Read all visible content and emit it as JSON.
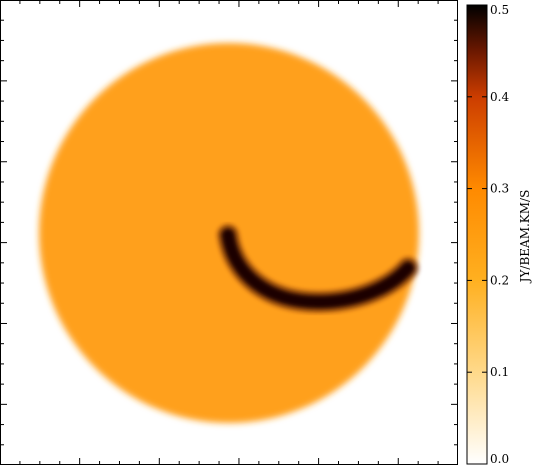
{
  "chart_data": {
    "type": "heatmap",
    "title": "",
    "colorbar": {
      "label": "JY/BEAM.KM/S",
      "range": [
        0.0,
        0.5
      ],
      "ticks": [
        {
          "value": 0.0,
          "label": "0.0"
        },
        {
          "value": 0.1,
          "label": "0.1"
        },
        {
          "value": 0.2,
          "label": "0.2"
        },
        {
          "value": 0.3,
          "label": "0.3"
        },
        {
          "value": 0.4,
          "label": "0.4"
        },
        {
          "value": 0.5,
          "label": "0.5"
        }
      ],
      "colormap": [
        {
          "value": 0.0,
          "color": "#ffffff"
        },
        {
          "value": 0.1,
          "color": "#ffd98a"
        },
        {
          "value": 0.2,
          "color": "#ffb020"
        },
        {
          "value": 0.3,
          "color": "#ff8a00"
        },
        {
          "value": 0.4,
          "color": "#cc3d00"
        },
        {
          "value": 0.45,
          "color": "#6b1800"
        },
        {
          "value": 0.5,
          "color": "#000000"
        }
      ]
    },
    "background_disk": {
      "value": 0.23,
      "color": "#ffa01a"
    },
    "arc_feature": {
      "peak_value": 0.5,
      "color": "#1a0600"
    },
    "grid": false,
    "axis_tick_labels_shown": false
  }
}
